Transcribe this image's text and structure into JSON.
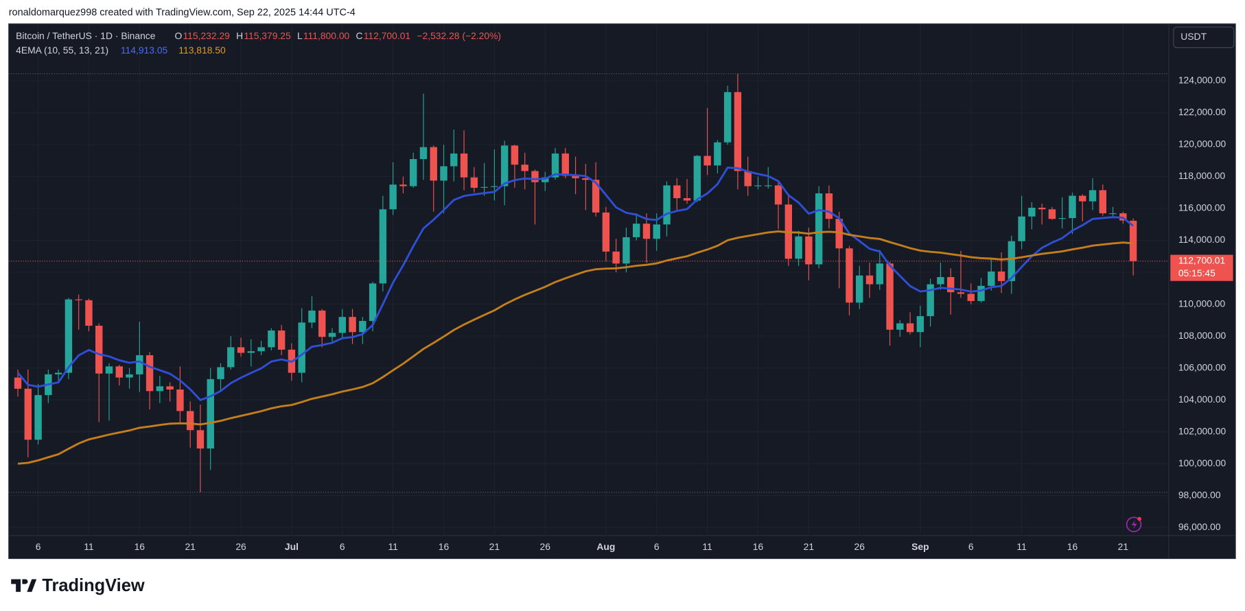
{
  "header": {
    "attribution": "ronaldomarquez998 created with TradingView.com, Sep 22, 2025 14:44 UTC-4",
    "logo": "TradingView"
  },
  "chart_data": {
    "type": "candlestick",
    "symbol": "Bitcoin / TetherUS · 1D · Binance",
    "ohlc_legend": [
      {
        "label": "O",
        "text": "115,232.29"
      },
      {
        "label": "H",
        "text": "115,379.25"
      },
      {
        "label": "L",
        "text": "111,800.00"
      },
      {
        "label": "C",
        "text": "112,700.01"
      }
    ],
    "change": "−2,532.28 (−2.20%)",
    "indicator": "4EMA (10, 55, 13, 21)",
    "indicator_values": [
      "114,913.05",
      "113,818.50"
    ],
    "currency": "USDT",
    "last_price_label": "112,700.01",
    "countdown": "05:15:45",
    "up_color": "#26a69a",
    "down_color": "#ef5350",
    "grid": true,
    "categories": [
      "Jun 4",
      "Jun 5",
      "Jun 6",
      "Jun 7",
      "Jun 8",
      "Jun 9",
      "Jun 10",
      "Jun 11",
      "Jun 12",
      "Jun 13",
      "Jun 14",
      "Jun 15",
      "Jun 16",
      "Jun 17",
      "Jun 18",
      "Jun 19",
      "Jun 20",
      "Jun 21",
      "Jun 22",
      "Jun 23",
      "Jun 24",
      "Jun 25",
      "Jun 26",
      "Jun 27",
      "Jun 28",
      "Jun 29",
      "Jun 30",
      "Jul 1",
      "Jul 2",
      "Jul 3",
      "Jul 4",
      "Jul 5",
      "Jul 6",
      "Jul 7",
      "Jul 8",
      "Jul 9",
      "Jul 10",
      "Jul 11",
      "Jul 12",
      "Jul 13",
      "Jul 14",
      "Jul 15",
      "Jul 16",
      "Jul 17",
      "Jul 18",
      "Jul 19",
      "Jul 20",
      "Jul 21",
      "Jul 22",
      "Jul 23",
      "Jul 24",
      "Jul 25",
      "Jul 26",
      "Jul 27",
      "Jul 28",
      "Jul 29",
      "Jul 30",
      "Jul 31",
      "Aug 1",
      "Aug 2",
      "Aug 3",
      "Aug 4",
      "Aug 5",
      "Aug 6",
      "Aug 7",
      "Aug 8",
      "Aug 9",
      "Aug 10",
      "Aug 11",
      "Aug 12",
      "Aug 13",
      "Aug 14",
      "Aug 15",
      "Aug 16",
      "Aug 17",
      "Aug 18",
      "Aug 19",
      "Aug 20",
      "Aug 21",
      "Aug 22",
      "Aug 23",
      "Aug 24",
      "Aug 25",
      "Aug 26",
      "Aug 27",
      "Aug 28",
      "Aug 29",
      "Aug 30",
      "Aug 31",
      "Sep 1",
      "Sep 2",
      "Sep 3",
      "Sep 4",
      "Sep 5",
      "Sep 6",
      "Sep 7",
      "Sep 8",
      "Sep 9",
      "Sep 10",
      "Sep 11",
      "Sep 12",
      "Sep 13",
      "Sep 14",
      "Sep 15",
      "Sep 16",
      "Sep 17",
      "Sep 18",
      "Sep 19",
      "Sep 20",
      "Sep 21",
      "Sep 22"
    ],
    "open": [
      105400,
      104700,
      101500,
      104300,
      105600,
      105700,
      110300,
      110250,
      108650,
      105650,
      106100,
      105400,
      105600,
      106800,
      104550,
      104850,
      104650,
      103300,
      102100,
      100950,
      105300,
      106050,
      107300,
      106950,
      107050,
      107300,
      108350,
      107150,
      105700,
      108850,
      109600,
      107950,
      108200,
      109200,
      108250,
      108950,
      111300,
      115950,
      117500,
      117400,
      119100,
      119850,
      117750,
      118650,
      119450,
      117950,
      117300,
      117350,
      117400,
      119950,
      118750,
      118350,
      117650,
      117950,
      119450,
      118050,
      117900,
      117800,
      115750,
      113300,
      112550,
      114200,
      115050,
      114100,
      115000,
      117450,
      116650,
      116500,
      119300,
      118700,
      120150,
      123300,
      118350,
      117400,
      117450,
      117450,
      116250,
      112850,
      114250,
      112500,
      116950,
      115350,
      113500,
      110100,
      111800,
      111250,
      112550,
      108400,
      108800,
      108250,
      109250,
      111250,
      111700,
      110750,
      110650,
      110200,
      111150,
      112050,
      111450,
      113950,
      115500,
      116050,
      115950,
      115350,
      115400,
      116800,
      116450,
      117150,
      115700,
      115700,
      115232.29
    ],
    "high": [
      105900,
      105900,
      105000,
      105900,
      105900,
      110400,
      110600,
      110350,
      108800,
      106300,
      106200,
      106000,
      108900,
      107000,
      105500,
      105100,
      106100,
      103900,
      103700,
      106000,
      106300,
      108000,
      107900,
      107800,
      107700,
      108500,
      108700,
      107550,
      109750,
      110500,
      109700,
      108500,
      109700,
      109700,
      109200,
      111400,
      116800,
      118900,
      118000,
      119500,
      123200,
      119950,
      120000,
      120950,
      120900,
      118600,
      118850,
      119700,
      120250,
      120000,
      119500,
      118450,
      118300,
      119800,
      119800,
      119250,
      118800,
      118900,
      116100,
      114100,
      114800,
      115700,
      115700,
      115700,
      117700,
      117900,
      117850,
      119350,
      122300,
      120300,
      123700,
      124450,
      119250,
      118000,
      118600,
      117700,
      116800,
      114600,
      114800,
      117400,
      117450,
      115800,
      113650,
      112400,
      112600,
      113400,
      112650,
      109000,
      109500,
      109900,
      111600,
      112600,
      112250,
      113350,
      111300,
      111650,
      112900,
      113250,
      114300,
      116800,
      116400,
      116300,
      116100,
      116700,
      117000,
      116900,
      117900,
      117500,
      116100,
      115800,
      115379.25
    ],
    "low": [
      104200,
      100400,
      101200,
      103800,
      105200,
      105300,
      108400,
      108300,
      102600,
      102700,
      104900,
      104700,
      104500,
      103400,
      103800,
      103900,
      102600,
      101000,
      98200,
      99600,
      104600,
      105900,
      106700,
      106100,
      106800,
      107100,
      106800,
      105200,
      105100,
      108500,
      107300,
      107600,
      107800,
      107500,
      107500,
      108300,
      110800,
      115600,
      116950,
      117300,
      117800,
      115800,
      115700,
      117700,
      117150,
      117000,
      116800,
      116500,
      116200,
      117300,
      117200,
      115000,
      117100,
      117800,
      117900,
      116900,
      115900,
      115500,
      112700,
      112000,
      112000,
      114000,
      112600,
      113350,
      114250,
      115900,
      116300,
      116400,
      118100,
      118200,
      120000,
      117200,
      116800,
      117200,
      117250,
      114700,
      112400,
      112400,
      111500,
      112250,
      114750,
      111000,
      109300,
      109700,
      110400,
      110900,
      107400,
      107950,
      108100,
      107300,
      108600,
      110900,
      109350,
      110400,
      110000,
      110100,
      110850,
      110700,
      110650,
      113450,
      114700,
      115000,
      115300,
      114750,
      114400,
      115200,
      115900,
      115550,
      115400,
      115050,
      111800
    ],
    "close": [
      104700,
      101500,
      104300,
      105600,
      105700,
      110300,
      110250,
      108650,
      105650,
      106100,
      105400,
      105600,
      106800,
      104550,
      104850,
      104650,
      103300,
      102100,
      100950,
      105300,
      106050,
      107300,
      106950,
      107050,
      107300,
      108350,
      107150,
      105700,
      108850,
      109600,
      107950,
      108200,
      109200,
      108250,
      108950,
      111300,
      115950,
      117500,
      117400,
      119100,
      119850,
      117750,
      118650,
      119450,
      117950,
      117300,
      117350,
      117400,
      119950,
      118750,
      118350,
      117650,
      117950,
      119450,
      118050,
      117900,
      117800,
      115750,
      113300,
      112550,
      114200,
      115050,
      114100,
      115000,
      117450,
      116650,
      116500,
      119300,
      118700,
      120150,
      123300,
      118350,
      117400,
      117450,
      117450,
      116250,
      112850,
      114250,
      112500,
      116950,
      115350,
      113500,
      110100,
      111800,
      111250,
      112550,
      108400,
      108800,
      108250,
      109250,
      111250,
      111700,
      110750,
      110650,
      110200,
      111150,
      112050,
      111450,
      113950,
      115500,
      116050,
      115950,
      115350,
      115400,
      116800,
      116450,
      117150,
      115700,
      115700,
      115250,
      112700.01
    ],
    "series": [
      {
        "color": "#2e4fd6",
        "values": [
          105700,
          104944,
          104828,
          104967,
          105099,
          106035,
          106794,
          107128,
          106862,
          106725,
          106486,
          106327,
          106412,
          106077,
          105856,
          105639,
          105218,
          104657,
          103990,
          104226,
          104554,
          105048,
          105390,
          105689,
          105979,
          106406,
          106540,
          106389,
          106832,
          107330,
          107442,
          107578,
          107870,
          107938,
          108120,
          108692,
          109999,
          111349,
          112438,
          113637,
          114755,
          115294,
          115898,
          116537,
          116791,
          116883,
          116967,
          117045,
          117568,
          117781,
          117883,
          117841,
          117861,
          118147,
          118130,
          118089,
          118037,
          117625,
          116847,
          116073,
          115736,
          115613,
          115341,
          115280,
          115671,
          115847,
          115965,
          116565,
          116949,
          117525,
          118565,
          118526,
          118323,
          118166,
          118037,
          117715,
          116839,
          116373,
          115676,
          115905,
          115805,
          115390,
          114438,
          113963,
          113475,
          113308,
          112425,
          111772,
          111138,
          110798,
          110879,
          111027,
          110977,
          110918,
          110789,
          110854,
          111069,
          111138,
          111644,
          112338,
          113006,
          113536,
          113863,
          114140,
          114619,
          114948,
          115344,
          115408,
          115461,
          115423,
          114913.05
        ]
      },
      {
        "color": "#c47f1b",
        "values": [
          100000,
          100054,
          100206,
          100399,
          100588,
          100935,
          101268,
          101520,
          101667,
          101825,
          101953,
          102083,
          102251,
          102333,
          102423,
          102503,
          102531,
          102516,
          102460,
          102561,
          102686,
          102851,
          102997,
          103142,
          103290,
          103471,
          103602,
          103677,
          103862,
          104067,
          104206,
          104349,
          104522,
          104655,
          104808,
          105040,
          105429,
          105860,
          106272,
          106730,
          107198,
          107575,
          107970,
          108380,
          108722,
          109028,
          109325,
          109613,
          109982,
          110295,
          110583,
          110835,
          111089,
          111387,
          111625,
          111849,
          112061,
          112193,
          112233,
          112244,
          112314,
          112412,
          112472,
          112562,
          112737,
          112877,
          113006,
          113231,
          113426,
          113666,
          114010,
          114165,
          114280,
          114393,
          114502,
          114564,
          114503,
          114494,
          114423,
          114513,
          114543,
          114506,
          114349,
          114258,
          114151,
          114094,
          113891,
          113709,
          113514,
          113362,
          113287,
          113230,
          113141,
          113052,
          112950,
          112886,
          112856,
          112806,
          112847,
          112942,
          113053,
          113156,
          113234,
          113311,
          113436,
          113544,
          113673,
          113745,
          113815,
          113866,
          113818.5
        ]
      }
    ],
    "last_price": 112700.01,
    "ylim": [
      95490,
      127580
    ],
    "yticks": [
      {
        "value": 96000,
        "label": "96,000.00"
      },
      {
        "value": 98000,
        "label": "98,000.00"
      },
      {
        "value": 100000,
        "label": "100,000.00"
      },
      {
        "value": 102000,
        "label": "102,000.00"
      },
      {
        "value": 104000,
        "label": "104,000.00"
      },
      {
        "value": 106000,
        "label": "106,000.00"
      },
      {
        "value": 108000,
        "label": "108,000.00"
      },
      {
        "value": 110000,
        "label": "110,000.00"
      },
      {
        "value": 112000,
        "label": "112,000.00"
      },
      {
        "value": 114000,
        "label": "114,000.00"
      },
      {
        "value": 116000,
        "label": "116,000.00"
      },
      {
        "value": 118000,
        "label": "118,000.00"
      },
      {
        "value": 120000,
        "label": "120,000.00"
      },
      {
        "value": 122000,
        "label": "122,000.00"
      },
      {
        "value": 124000,
        "label": "124,000.00"
      }
    ],
    "xticks": [
      {
        "value": "Jun 6",
        "label": "6"
      },
      {
        "value": "Jun 11",
        "label": "11"
      },
      {
        "value": "Jun 16",
        "label": "16"
      },
      {
        "value": "Jun 21",
        "label": "21"
      },
      {
        "value": "Jun 26",
        "label": "26"
      },
      {
        "value": "Jul 1",
        "label": "Jul"
      },
      {
        "value": "Jul 6",
        "label": "6"
      },
      {
        "value": "Jul 11",
        "label": "11"
      },
      {
        "value": "Jul 16",
        "label": "16"
      },
      {
        "value": "Jul 21",
        "label": "21"
      },
      {
        "value": "Jul 26",
        "label": "26"
      },
      {
        "value": "Aug 1",
        "label": "Aug"
      },
      {
        "value": "Aug 6",
        "label": "6"
      },
      {
        "value": "Aug 11",
        "label": "11"
      },
      {
        "value": "Aug 16",
        "label": "16"
      },
      {
        "value": "Aug 21",
        "label": "21"
      },
      {
        "value": "Aug 26",
        "label": "26"
      },
      {
        "value": "Sep 1",
        "label": "Sep"
      },
      {
        "value": "Sep 6",
        "label": "6"
      },
      {
        "value": "Sep 11",
        "label": "11"
      },
      {
        "value": "Sep 16",
        "label": "16"
      },
      {
        "value": "Sep 21",
        "label": "21"
      }
    ]
  }
}
